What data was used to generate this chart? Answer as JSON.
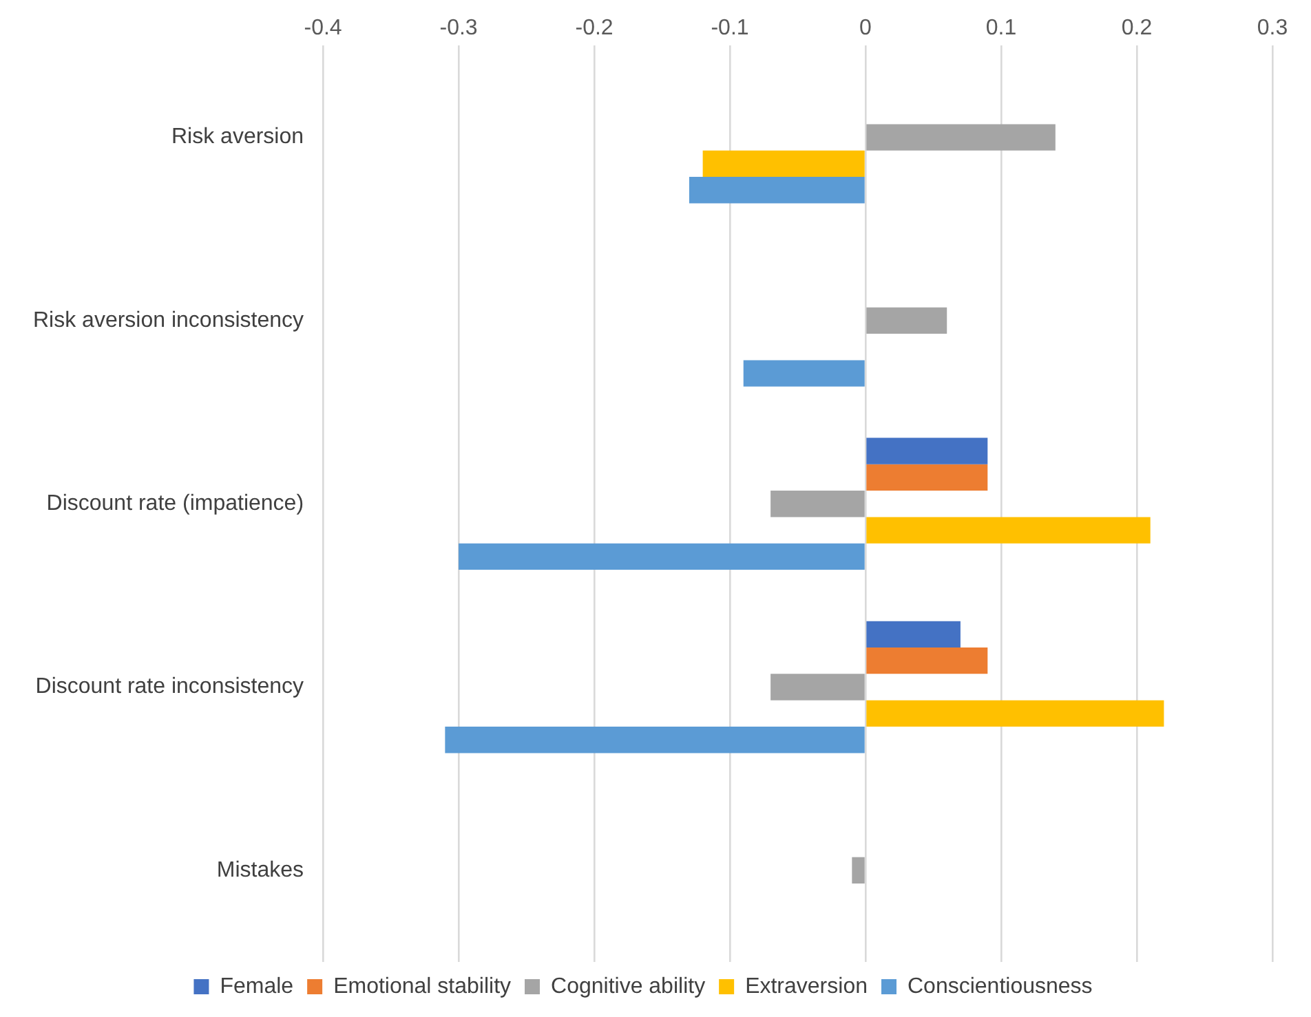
{
  "chart_data": {
    "type": "bar",
    "orientation": "horizontal",
    "categories": [
      "Risk aversion",
      "Risk aversion inconsistency",
      "Discount rate (impatience)",
      "Discount rate inconsistency",
      "Mistakes"
    ],
    "series": [
      {
        "name": "Female",
        "color": "#4472c4",
        "values": [
          null,
          null,
          0.09,
          0.07,
          null
        ]
      },
      {
        "name": "Emotional stability",
        "color": "#ed7d31",
        "values": [
          null,
          null,
          0.09,
          0.09,
          null
        ]
      },
      {
        "name": "Cognitive ability",
        "color": "#a5a5a5",
        "values": [
          0.14,
          0.06,
          -0.07,
          -0.07,
          -0.01
        ]
      },
      {
        "name": "Extraversion",
        "color": "#ffc000",
        "values": [
          -0.12,
          null,
          0.21,
          0.22,
          null
        ]
      },
      {
        "name": "Conscientiousness",
        "color": "#5b9bd5",
        "values": [
          -0.13,
          -0.09,
          -0.3,
          -0.31,
          null
        ]
      }
    ],
    "xlim": [
      -0.4,
      0.3
    ],
    "xticks": [
      -0.4,
      -0.3,
      -0.2,
      -0.1,
      0,
      0.1,
      0.2,
      0.3
    ],
    "grid": "x",
    "legend": "bottom"
  }
}
